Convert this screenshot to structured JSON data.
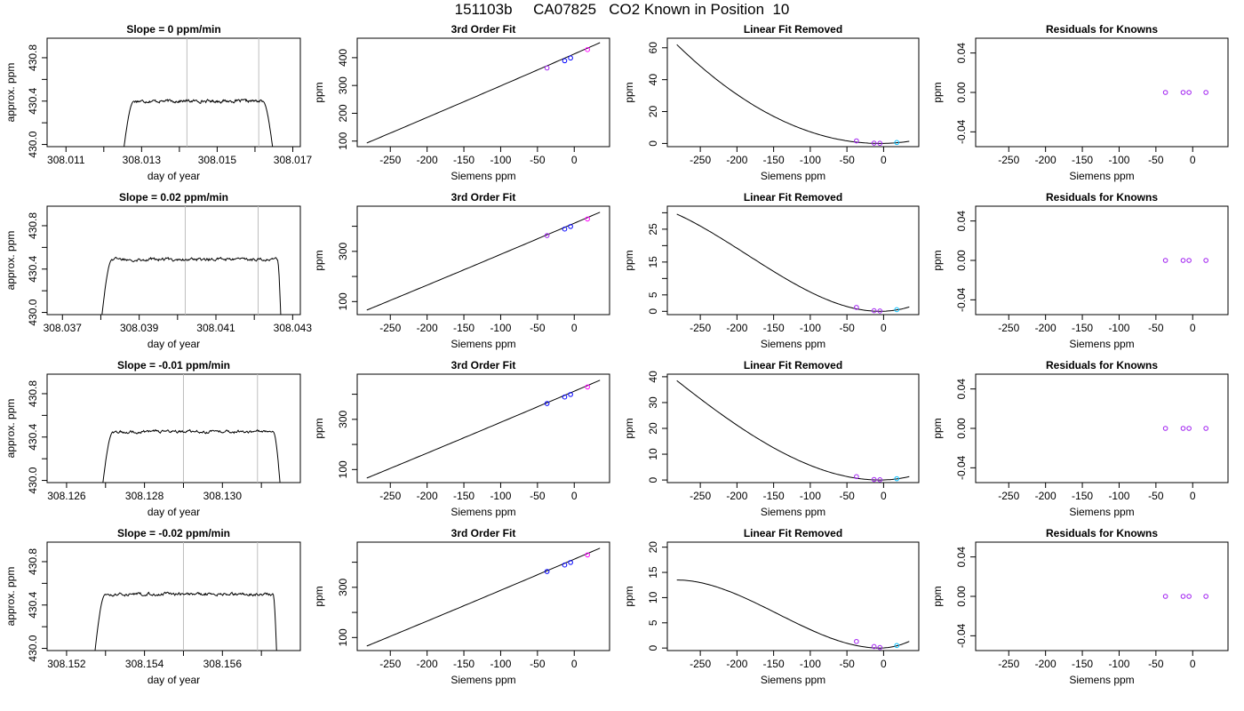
{
  "page_title": "151103b     CA07825   CO2 Known in Position  10",
  "colors": {
    "axis": "#000000",
    "line": "#000000",
    "vline": "#bebebe",
    "point_blue": "#0000ff",
    "point_purple": "#a020f0",
    "point_magenta": "#ff00ff",
    "point_cyan": "#00bfff"
  },
  "chart_data": [
    {
      "row": 0,
      "col": 0,
      "type": "line",
      "title": "Slope =  0  ppm/min",
      "xlabel": "day of year",
      "ylabel": "approx. ppm",
      "xlim": [
        308.0105,
        308.0172
      ],
      "ylim": [
        429.98,
        430.98
      ],
      "xticks": [
        308.011,
        308.013,
        308.015,
        308.017
      ],
      "xticklabels": [
        "308.011",
        "308.013",
        "308.015",
        "308.017"
      ],
      "xminor": [
        308.012,
        308.014,
        308.016
      ],
      "yticks": [
        430.0,
        430.4,
        430.8
      ],
      "yticklabels": [
        "430.0",
        "430.4",
        "430.8"
      ],
      "yminor": [
        430.2,
        430.6
      ],
      "vlines": [
        308.0142,
        308.0161
      ],
      "trace": {
        "start": 308.0125,
        "end": 308.0165,
        "level": 430.4,
        "rise": 0.0003,
        "fall": 0.0003,
        "noise": 0.012
      }
    },
    {
      "row": 0,
      "col": 1,
      "type": "scatter+line",
      "title": "3rd Order Fit",
      "xlabel": "Siemens ppm",
      "ylabel": "ppm",
      "xlim": [
        -295,
        48
      ],
      "ylim": [
        80,
        470
      ],
      "xticks": [
        -250,
        -200,
        -150,
        -100,
        -50,
        0
      ],
      "xticklabels": [
        "-250",
        "-200",
        "-150",
        "-100",
        "-50",
        "0"
      ],
      "yticks": [
        100,
        200,
        300,
        400
      ],
      "yticklabels": [
        "100",
        "200",
        "300",
        "400"
      ],
      "curve": {
        "x": [
          -282,
          35
        ],
        "y": [
          93,
          454
        ],
        "sag": -0.02
      },
      "points": [
        {
          "x": -37,
          "y": 363,
          "c": "point_purple"
        },
        {
          "x": -13,
          "y": 389,
          "c": "point_blue"
        },
        {
          "x": -5,
          "y": 399,
          "c": "point_blue"
        },
        {
          "x": 18,
          "y": 429,
          "c": "point_magenta"
        }
      ]
    },
    {
      "row": 0,
      "col": 2,
      "type": "scatter+line",
      "title": "Linear Fit Removed",
      "xlabel": "Siemens ppm",
      "ylabel": "ppm",
      "xlim": [
        -295,
        48
      ],
      "ylim": [
        -2,
        66
      ],
      "xticks": [
        -250,
        -200,
        -150,
        -100,
        -50,
        0
      ],
      "xticklabels": [
        "-250",
        "-200",
        "-150",
        "-100",
        "-50",
        "0"
      ],
      "yticks": [
        0,
        20,
        40,
        60
      ],
      "yticklabels": [
        "0",
        "20",
        "40",
        "60"
      ],
      "cubic": {
        "x0": -282,
        "x1": 35,
        "r1": 0,
        "r2": -8,
        "r3": -3,
        "s": 1,
        "ystart": 62
      },
      "points": [
        {
          "x": -37,
          "y": 1.6,
          "c": "point_purple"
        },
        {
          "x": -13,
          "y": 0.2,
          "c": "point_purple"
        },
        {
          "x": -5,
          "y": 0.1,
          "c": "point_purple"
        },
        {
          "x": 18,
          "y": 0.6,
          "c": "point_cyan"
        }
      ]
    },
    {
      "row": 0,
      "col": 3,
      "type": "scatter",
      "title": "Residuals for Knowns",
      "xlabel": "Siemens ppm",
      "ylabel": "ppm",
      "xlim": [
        -295,
        48
      ],
      "ylim": [
        -0.055,
        0.055
      ],
      "xticks": [
        -250,
        -200,
        -150,
        -100,
        -50,
        0
      ],
      "xticklabels": [
        "-250",
        "-200",
        "-150",
        "-100",
        "-50",
        "0"
      ],
      "yticks": [
        -0.04,
        0.0,
        0.04
      ],
      "yticklabels": [
        "-0.04",
        "0.00",
        "0.04"
      ],
      "points": [
        {
          "x": -37,
          "y": 0,
          "c": "point_purple"
        },
        {
          "x": -13,
          "y": 0,
          "c": "point_purple"
        },
        {
          "x": -5,
          "y": 0,
          "c": "point_purple"
        },
        {
          "x": 18,
          "y": 0,
          "c": "point_purple"
        }
      ]
    },
    {
      "row": 1,
      "col": 0,
      "type": "line",
      "title": "Slope =  0.02  ppm/min",
      "xlabel": "day of year",
      "ylabel": "approx. ppm",
      "xlim": [
        308.0366,
        308.0432
      ],
      "ylim": [
        429.98,
        430.98
      ],
      "xticks": [
        308.037,
        308.039,
        308.041,
        308.043
      ],
      "xticklabels": [
        "308.037",
        "308.039",
        "308.041",
        "308.043"
      ],
      "xminor": [
        308.038,
        308.04,
        308.042
      ],
      "yticks": [
        430.0,
        430.4,
        430.8
      ],
      "yticklabels": [
        "430.0",
        "430.4",
        "430.8"
      ],
      "yminor": [
        430.2,
        430.6
      ],
      "vlines": [
        308.0402,
        308.0421
      ],
      "trace": {
        "start": 308.038,
        "end": 308.0427,
        "level": 430.49,
        "rise": 0.0003,
        "fall": 0.0001,
        "noise": 0.013
      }
    },
    {
      "row": 1,
      "col": 1,
      "type": "scatter+line",
      "title": "3rd Order Fit",
      "xlabel": "Siemens ppm",
      "ylabel": "ppm",
      "xlim": [
        -295,
        48
      ],
      "ylim": [
        48,
        480
      ],
      "xticks": [
        -250,
        -200,
        -150,
        -100,
        -50,
        0
      ],
      "xticklabels": [
        "-250",
        "-200",
        "-150",
        "-100",
        "-50",
        "0"
      ],
      "yticks": [
        100,
        300
      ],
      "yticklabels": [
        "100",
        "300"
      ],
      "yminor": [
        200,
        400
      ],
      "curve": {
        "x": [
          -282,
          35
        ],
        "y": [
          66,
          456
        ],
        "sag": -0.02
      },
      "points": [
        {
          "x": -37,
          "y": 363,
          "c": "point_purple"
        },
        {
          "x": -13,
          "y": 389,
          "c": "point_blue"
        },
        {
          "x": -5,
          "y": 399,
          "c": "point_blue"
        },
        {
          "x": 18,
          "y": 429,
          "c": "point_magenta"
        }
      ]
    },
    {
      "row": 1,
      "col": 2,
      "type": "scatter+line",
      "title": "Linear Fit Removed",
      "xlabel": "Siemens ppm",
      "ylabel": "ppm",
      "xlim": [
        -295,
        48
      ],
      "ylim": [
        -1,
        32
      ],
      "xticks": [
        -250,
        -200,
        -150,
        -100,
        -50,
        0
      ],
      "xticklabels": [
        "-250",
        "-200",
        "-150",
        "-100",
        "-50",
        "0"
      ],
      "yticks": [
        0,
        5,
        15,
        25
      ],
      "yticklabels": [
        "0",
        "5",
        "15",
        "25"
      ],
      "yminor": [
        10,
        20,
        30
      ],
      "cubic": {
        "x0": -282,
        "x1": 35,
        "r1": 0.04,
        "r2": -8,
        "r3": -3,
        "s": -1.9,
        "ystart": 29.6
      },
      "points": [
        {
          "x": -37,
          "y": 1.2,
          "c": "point_purple"
        },
        {
          "x": -13,
          "y": 0.2,
          "c": "point_purple"
        },
        {
          "x": -5,
          "y": 0.1,
          "c": "point_purple"
        },
        {
          "x": 18,
          "y": 0.5,
          "c": "point_cyan"
        }
      ]
    },
    {
      "row": 1,
      "col": 3,
      "type": "scatter",
      "title": "Residuals for Knowns",
      "xlabel": "Siemens ppm",
      "ylabel": "ppm",
      "xlim": [
        -295,
        48
      ],
      "ylim": [
        -0.055,
        0.055
      ],
      "xticks": [
        -250,
        -200,
        -150,
        -100,
        -50,
        0
      ],
      "xticklabels": [
        "-250",
        "-200",
        "-150",
        "-100",
        "-50",
        "0"
      ],
      "yticks": [
        -0.04,
        0.0,
        0.04
      ],
      "yticklabels": [
        "-0.04",
        "0.00",
        "0.04"
      ],
      "points": [
        {
          "x": -37,
          "y": 0,
          "c": "point_purple"
        },
        {
          "x": -13,
          "y": 0,
          "c": "point_purple"
        },
        {
          "x": -5,
          "y": 0,
          "c": "point_purple"
        },
        {
          "x": 18,
          "y": 0,
          "c": "point_purple"
        }
      ]
    },
    {
      "row": 2,
      "col": 0,
      "type": "line",
      "title": "Slope =  -0.01  ppm/min",
      "xlabel": "day of year",
      "ylabel": "approx. ppm",
      "xlim": [
        308.1255,
        308.132
      ],
      "ylim": [
        429.98,
        430.98
      ],
      "xticks": [
        308.126,
        308.128,
        308.13
      ],
      "xticklabels": [
        "308.126",
        "308.128",
        "308.130"
      ],
      "xminor": [
        308.127,
        308.129,
        308.131
      ],
      "yticks": [
        430.0,
        430.4,
        430.8
      ],
      "yticklabels": [
        "430.0",
        "430.4",
        "430.8"
      ],
      "yminor": [
        430.2,
        430.6
      ],
      "vlines": [
        308.129,
        308.1309
      ],
      "trace": {
        "start": 308.1269,
        "end": 308.1315,
        "level": 430.45,
        "rise": 0.0003,
        "fall": 0.0002,
        "noise": 0.012
      }
    },
    {
      "row": 2,
      "col": 1,
      "type": "scatter+line",
      "title": "3rd Order Fit",
      "xlabel": "Siemens ppm",
      "ylabel": "ppm",
      "xlim": [
        -295,
        48
      ],
      "ylim": [
        48,
        480
      ],
      "xticks": [
        -250,
        -200,
        -150,
        -100,
        -50,
        0
      ],
      "xticklabels": [
        "-250",
        "-200",
        "-150",
        "-100",
        "-50",
        "0"
      ],
      "yticks": [
        100,
        300
      ],
      "yticklabels": [
        "100",
        "300"
      ],
      "yminor": [
        200,
        400
      ],
      "curve": {
        "x": [
          -282,
          35
        ],
        "y": [
          66,
          456
        ],
        "sag": -0.02
      },
      "points": [
        {
          "x": -37,
          "y": 363,
          "c": "point_blue"
        },
        {
          "x": -13,
          "y": 389,
          "c": "point_blue"
        },
        {
          "x": -5,
          "y": 399,
          "c": "point_blue"
        },
        {
          "x": 18,
          "y": 429,
          "c": "point_magenta"
        }
      ]
    },
    {
      "row": 2,
      "col": 2,
      "type": "scatter+line",
      "title": "Linear Fit Removed",
      "xlabel": "Siemens ppm",
      "ylabel": "ppm",
      "xlim": [
        -295,
        48
      ],
      "ylim": [
        -1,
        41
      ],
      "xticks": [
        -250,
        -200,
        -150,
        -100,
        -50,
        0
      ],
      "xticklabels": [
        "-250",
        "-200",
        "-150",
        "-100",
        "-50",
        "0"
      ],
      "yticks": [
        0,
        10,
        20,
        30,
        40
      ],
      "yticklabels": [
        "0",
        "10",
        "20",
        "30",
        "40"
      ],
      "cubic": {
        "x0": -282,
        "x1": 35,
        "r1": 0,
        "r2": -8,
        "r3": -3,
        "s": -0.7,
        "ystart": 38.5
      },
      "points": [
        {
          "x": -37,
          "y": 1.3,
          "c": "point_purple"
        },
        {
          "x": -13,
          "y": 0.2,
          "c": "point_purple"
        },
        {
          "x": -5,
          "y": 0.1,
          "c": "point_purple"
        },
        {
          "x": 18,
          "y": 0.5,
          "c": "point_cyan"
        }
      ]
    },
    {
      "row": 2,
      "col": 3,
      "type": "scatter",
      "title": "Residuals for Knowns",
      "xlabel": "Siemens ppm",
      "ylabel": "ppm",
      "xlim": [
        -295,
        48
      ],
      "ylim": [
        -0.055,
        0.055
      ],
      "xticks": [
        -250,
        -200,
        -150,
        -100,
        -50,
        0
      ],
      "xticklabels": [
        "-250",
        "-200",
        "-150",
        "-100",
        "-50",
        "0"
      ],
      "yticks": [
        -0.04,
        0.0,
        0.04
      ],
      "yticklabels": [
        "-0.04",
        "0.00",
        "0.04"
      ],
      "points": [
        {
          "x": -37,
          "y": 0,
          "c": "point_purple"
        },
        {
          "x": -13,
          "y": 0,
          "c": "point_purple"
        },
        {
          "x": -5,
          "y": 0,
          "c": "point_purple"
        },
        {
          "x": 18,
          "y": 0,
          "c": "point_purple"
        }
      ]
    },
    {
      "row": 3,
      "col": 0,
      "type": "line",
      "title": "Slope =  -0.02  ppm/min",
      "xlabel": "day of year",
      "ylabel": "approx. ppm",
      "xlim": [
        308.1515,
        308.158
      ],
      "ylim": [
        429.98,
        430.98
      ],
      "xticks": [
        308.152,
        308.154,
        308.156
      ],
      "xticklabels": [
        "308.152",
        "308.154",
        "308.156"
      ],
      "xminor": [
        308.153,
        308.155,
        308.157
      ],
      "yticks": [
        430.0,
        430.4,
        430.8
      ],
      "yticklabels": [
        "430.0",
        "430.4",
        "430.8"
      ],
      "yminor": [
        430.2,
        430.6
      ],
      "vlines": [
        308.155,
        308.1569
      ],
      "trace": {
        "start": 308.1527,
        "end": 308.1574,
        "level": 430.5,
        "rise": 0.0003,
        "fall": 0.0001,
        "noise": 0.012
      }
    },
    {
      "row": 3,
      "col": 1,
      "type": "scatter+line",
      "title": "3rd Order Fit",
      "xlabel": "Siemens ppm",
      "ylabel": "ppm",
      "xlim": [
        -295,
        48
      ],
      "ylim": [
        48,
        480
      ],
      "xticks": [
        -250,
        -200,
        -150,
        -100,
        -50,
        0
      ],
      "xticklabels": [
        "-250",
        "-200",
        "-150",
        "-100",
        "-50",
        "0"
      ],
      "yticks": [
        100,
        300
      ],
      "yticklabels": [
        "100",
        "300"
      ],
      "yminor": [
        200,
        400
      ],
      "curve": {
        "x": [
          -282,
          35
        ],
        "y": [
          66,
          456
        ],
        "sag": -0.02
      },
      "points": [
        {
          "x": -37,
          "y": 363,
          "c": "point_blue"
        },
        {
          "x": -13,
          "y": 389,
          "c": "point_blue"
        },
        {
          "x": -5,
          "y": 399,
          "c": "point_blue"
        },
        {
          "x": 18,
          "y": 429,
          "c": "point_magenta"
        }
      ]
    },
    {
      "row": 3,
      "col": 2,
      "type": "scatter+line",
      "title": "Linear Fit Removed",
      "xlabel": "Siemens ppm",
      "ylabel": "ppm",
      "xlim": [
        -295,
        48
      ],
      "ylim": [
        -0.5,
        21
      ],
      "xticks": [
        -250,
        -200,
        -150,
        -100,
        -50,
        0
      ],
      "xticklabels": [
        "-250",
        "-200",
        "-150",
        "-100",
        "-50",
        "0"
      ],
      "yticks": [
        0,
        5,
        10,
        15,
        20
      ],
      "yticklabels": [
        "0",
        "5",
        "10",
        "15",
        "20"
      ],
      "cubic": {
        "x0": -282,
        "x1": 35,
        "r1": 0.05,
        "r2": -8,
        "r3": -3,
        "s": -3.6,
        "ystart": 13.5
      },
      "points": [
        {
          "x": -37,
          "y": 1.3,
          "c": "point_purple"
        },
        {
          "x": -13,
          "y": 0.3,
          "c": "point_purple"
        },
        {
          "x": -5,
          "y": 0.1,
          "c": "point_purple"
        },
        {
          "x": 18,
          "y": 0.5,
          "c": "point_cyan"
        }
      ]
    },
    {
      "row": 3,
      "col": 3,
      "type": "scatter",
      "title": "Residuals for Knowns",
      "xlabel": "Siemens ppm",
      "ylabel": "ppm",
      "xlim": [
        -295,
        48
      ],
      "ylim": [
        -0.055,
        0.055
      ],
      "xticks": [
        -250,
        -200,
        -150,
        -100,
        -50,
        0
      ],
      "xticklabels": [
        "-250",
        "-200",
        "-150",
        "-100",
        "-50",
        "0"
      ],
      "yticks": [
        -0.04,
        0.0,
        0.04
      ],
      "yticklabels": [
        "-0.04",
        "0.00",
        "0.04"
      ],
      "points": [
        {
          "x": -37,
          "y": 0,
          "c": "point_purple"
        },
        {
          "x": -13,
          "y": 0,
          "c": "point_purple"
        },
        {
          "x": -5,
          "y": 0,
          "c": "point_purple"
        },
        {
          "x": 18,
          "y": 0,
          "c": "point_purple"
        }
      ]
    }
  ]
}
